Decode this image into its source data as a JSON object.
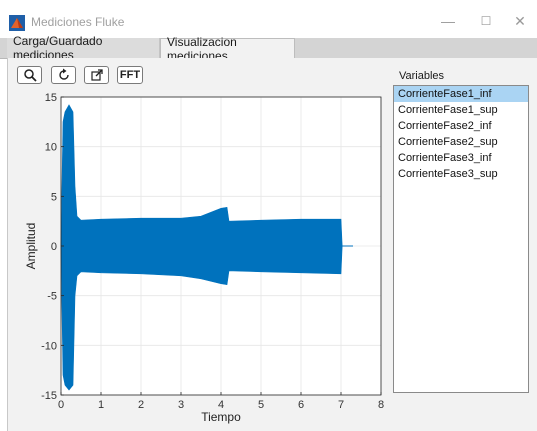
{
  "window": {
    "title": "Mediciones Fluke",
    "minimize": "—",
    "maximize": "☐",
    "close": "✕"
  },
  "tabs": [
    {
      "label": "Carga/Guardado mediciones",
      "active": false
    },
    {
      "label": "Visualizacion mediciones",
      "active": true
    }
  ],
  "toolbar": {
    "zoom_icon": "magnifier-icon",
    "reset_icon": "rotate-icon",
    "popout_icon": "popout-icon",
    "fft_label": "FFT"
  },
  "variables": {
    "label": "Variables",
    "items": [
      "CorrienteFase1_inf",
      "CorrienteFase1_sup",
      "CorrienteFase2_inf",
      "CorrienteFase2_sup",
      "CorrienteFase3_inf",
      "CorrienteFase3_sup"
    ],
    "selected": "CorrienteFase1_inf"
  },
  "chart_data": {
    "type": "area",
    "xlabel": "Tiempo",
    "ylabel": "Amplitud",
    "xlim": [
      0,
      8
    ],
    "ylim": [
      -15,
      15
    ],
    "xticks": [
      0,
      1,
      2,
      3,
      4,
      5,
      6,
      7,
      8
    ],
    "yticks": [
      15,
      10,
      5,
      0,
      -5,
      -10,
      -15
    ],
    "grid": true,
    "color": "#0072bd",
    "envelope": {
      "x": [
        0.0,
        0.05,
        0.1,
        0.2,
        0.3,
        0.35,
        0.4,
        0.5,
        1.0,
        2.0,
        3.0,
        3.5,
        4.0,
        4.15,
        4.2,
        5.0,
        6.0,
        7.0,
        7.03,
        7.3
      ],
      "upper": [
        0,
        12.5,
        13.5,
        14.2,
        13.5,
        6,
        3,
        2.6,
        2.7,
        2.8,
        2.8,
        3.0,
        3.8,
        3.9,
        2.5,
        2.6,
        2.7,
        2.7,
        0,
        0
      ],
      "lower": [
        0,
        -13,
        -14,
        -14.5,
        -14,
        -5,
        -3,
        -2.6,
        -2.7,
        -2.8,
        -3.0,
        -3.3,
        -3.8,
        -3.9,
        -2.5,
        -2.6,
        -2.7,
        -2.8,
        0,
        0
      ]
    }
  }
}
